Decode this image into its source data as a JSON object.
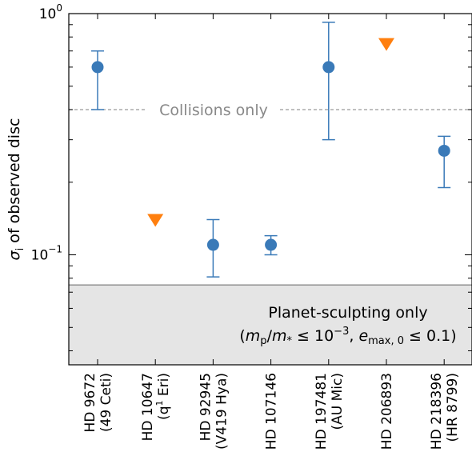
{
  "chart_data": {
    "type": "scatter",
    "ylabel_symbol": "σ",
    "ylabel_subscript": "i",
    "ylabel_rest": " of observed disc",
    "yscale": "log",
    "ylim": [
      0.035,
      1.0
    ],
    "yticks": [
      {
        "value": 1.0,
        "base": "10",
        "exp": "0"
      },
      {
        "value": 0.1,
        "base": "10",
        "exp": "−1"
      }
    ],
    "categories": [
      {
        "line1": "HD 9672",
        "line2": "(49 Ceti)"
      },
      {
        "line1": "HD 10647",
        "line2_pre": "(q",
        "line2_sup": "1",
        "line2_post": " Eri)"
      },
      {
        "line1": "HD 92945",
        "line2": "(V419 Hya)"
      },
      {
        "line1": "HD 107146",
        "line2": ""
      },
      {
        "line1": "HD 197481",
        "line2": "(AU Mic)"
      },
      {
        "line1": "HD 206893",
        "line2": ""
      },
      {
        "line1": "HD 218396",
        "line2": "(HR 8799)"
      }
    ],
    "measurements": [
      {
        "index": 0,
        "y": 0.6,
        "yerr_low": 0.4,
        "yerr_high": 0.7
      },
      {
        "index": 2,
        "y": 0.11,
        "yerr_low": 0.081,
        "yerr_high": 0.14
      },
      {
        "index": 3,
        "y": 0.11,
        "yerr_low": 0.1,
        "yerr_high": 0.12
      },
      {
        "index": 4,
        "y": 0.6,
        "yerr_low": 0.3,
        "yerr_high": 0.92
      },
      {
        "index": 6,
        "y": 0.27,
        "yerr_low": 0.19,
        "yerr_high": 0.31
      }
    ],
    "upper_limits": [
      {
        "index": 1,
        "y": 0.14
      },
      {
        "index": 5,
        "y": 0.75
      }
    ],
    "collisions_only": {
      "y": 0.4,
      "label": "Collisions only"
    },
    "planet_sculpting_only": {
      "y_max": 0.075,
      "line1": "Planet-sculpting only",
      "line2": {
        "open": "(",
        "m": "m",
        "p_sub": "p",
        "slash": "/",
        "m2": "m",
        "star_sub": "*",
        "le1": " ≤ 10",
        "exp": "−3",
        "comma": ", ",
        "e": "e",
        "emax_sub": "max, 0",
        "le2": " ≤ 0.1)"
      }
    },
    "colors": {
      "points": "#3a7ab8",
      "upper_limits": "#ff7f0e",
      "collisions_line": "#999999",
      "region_fill": "#e5e5e5",
      "region_edge": "#888888"
    },
    "grid": false,
    "legend": "none"
  }
}
